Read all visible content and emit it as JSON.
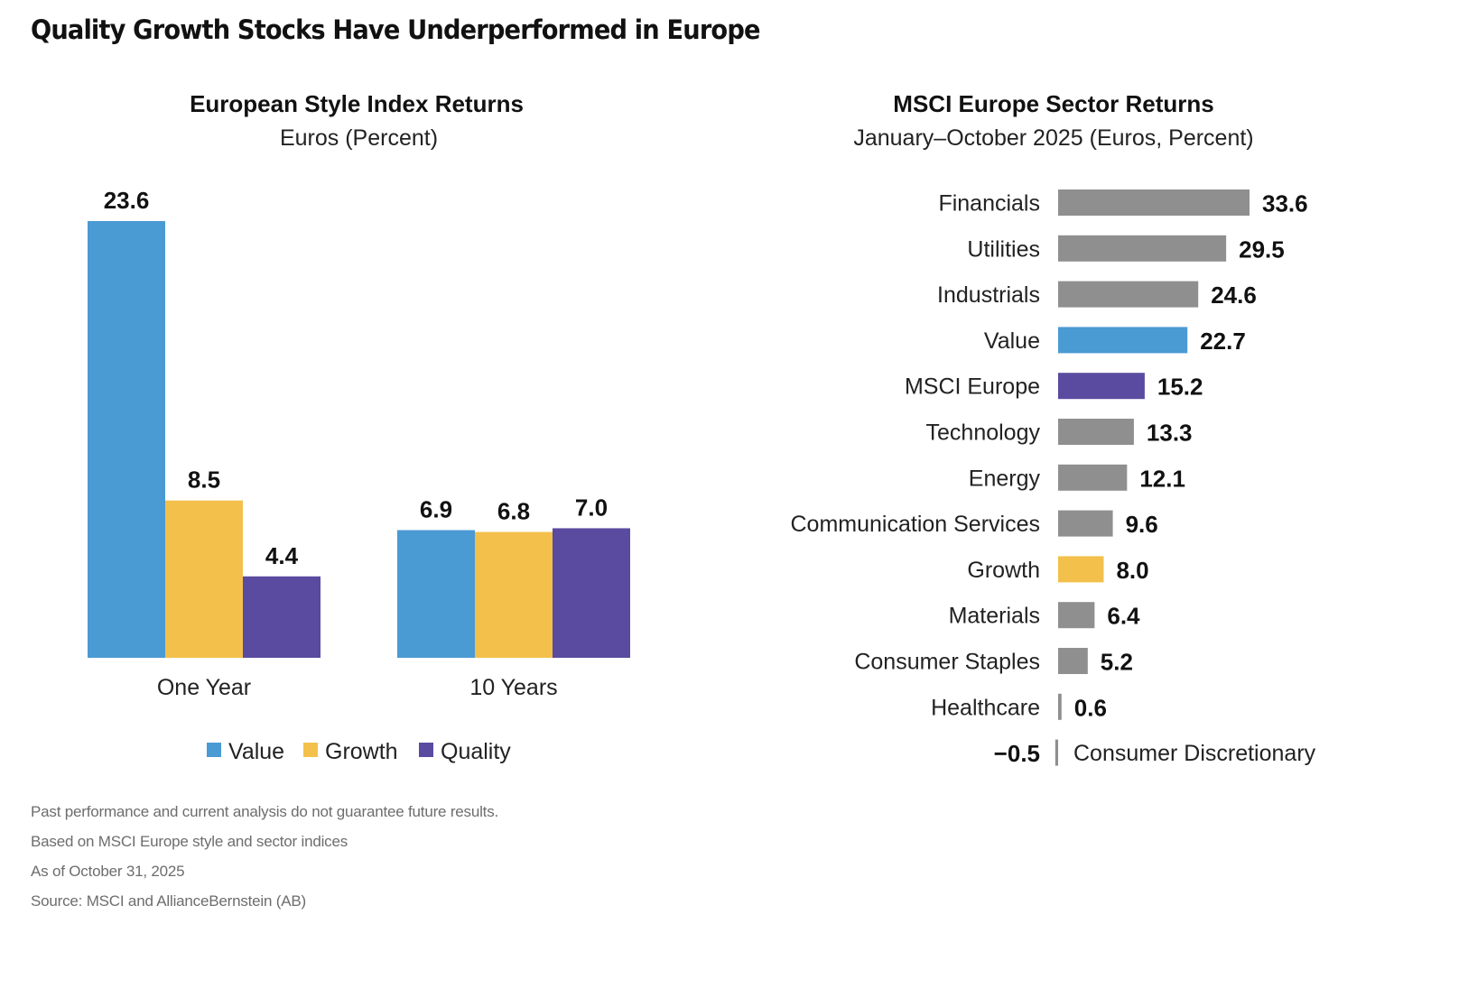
{
  "title": "Quality Growth Stocks Have Underperformed in Europe",
  "chart_data": [
    {
      "type": "bar",
      "title": "European Style Index Returns",
      "subtitle": "Euros (Percent)",
      "categories": [
        "One Year",
        "10 Years"
      ],
      "series": [
        {
          "name": "Value",
          "values": [
            23.6,
            6.9
          ],
          "color": "#4a9ad4"
        },
        {
          "name": "Growth",
          "values": [
            8.5,
            6.8
          ],
          "color": "#f3c04c"
        },
        {
          "name": "Quality",
          "values": [
            4.4,
            7.0
          ],
          "color": "#5a4aa0"
        }
      ],
      "value_labels": [
        [
          "23.6",
          "6.9"
        ],
        [
          "8.5",
          "6.8"
        ],
        [
          "4.4",
          "7.0"
        ]
      ],
      "legend_position": "bottom",
      "ylim": [
        0,
        23.6
      ],
      "grid": false
    },
    {
      "type": "bar",
      "orientation": "horizontal",
      "title": "MSCI Europe Sector Returns",
      "subtitle": "January–October 2025 (Euros, Percent)",
      "categories": [
        "Financials",
        "Utilities",
        "Industrials",
        "Value",
        "MSCI Europe",
        "Technology",
        "Energy",
        "Communication Services",
        "Growth",
        "Materials",
        "Consumer Staples",
        "Healthcare",
        "Consumer Discretionary"
      ],
      "values": [
        33.6,
        29.5,
        24.6,
        22.7,
        15.2,
        13.3,
        12.1,
        9.6,
        8.0,
        6.4,
        5.2,
        0.6,
        -0.5
      ],
      "value_labels": [
        "33.6",
        "29.5",
        "24.6",
        "22.7",
        "15.2",
        "13.3",
        "12.1",
        "9.6",
        "8.0",
        "6.4",
        "5.2",
        "0.6",
        "−0.5"
      ],
      "colors": {
        "default": "#8f8f8f",
        "Value": "#4a9ad4",
        "MSCI Europe": "#5a4aa0",
        "Growth": "#f3c04c"
      },
      "grid": false
    }
  ],
  "footnotes": [
    "Past performance and current analysis do not guarantee future results.",
    "Based on MSCI Europe style and sector indices",
    "As of October 31, 2025",
    "Source: MSCI and AllianceBernstein (AB)"
  ]
}
